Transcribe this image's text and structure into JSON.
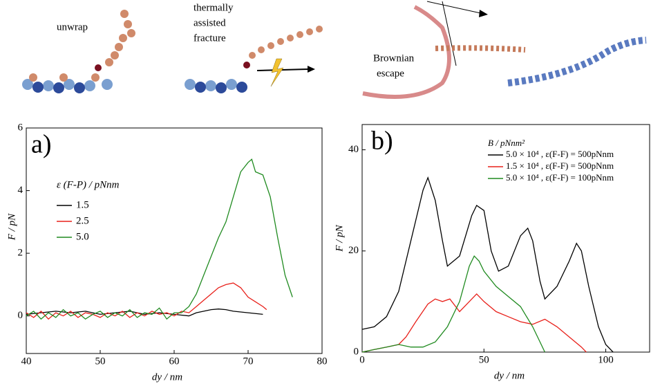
{
  "top_labels": {
    "unwrap": "unwrap",
    "fracture": [
      "thermally",
      "assisted",
      "fracture"
    ],
    "escape": [
      "Brownian",
      "escape"
    ]
  },
  "chart_data": [
    {
      "type": "line",
      "panel_label": "a)",
      "xlabel": "dy / nm",
      "ylabel": "F / pN",
      "xlim": [
        40,
        80
      ],
      "ylim": [
        -1.2,
        6
      ],
      "xticks": [
        40,
        50,
        60,
        70,
        80
      ],
      "yticks": [
        0,
        2,
        4,
        6
      ],
      "legend_title": "ε (F-P) / pNnm",
      "legend_position": "upper left",
      "series": [
        {
          "name": "1.5",
          "color": "#000000",
          "x": [
            40,
            42,
            44,
            46,
            48,
            50,
            52,
            54,
            56,
            58,
            60,
            62,
            63,
            64,
            65,
            66,
            67,
            68,
            70,
            72
          ],
          "values": [
            0.05,
            0.1,
            0.15,
            0.1,
            0.15,
            0.05,
            0.1,
            0.15,
            0.05,
            0.1,
            0.05,
            0.0,
            0.1,
            0.15,
            0.2,
            0.22,
            0.2,
            0.15,
            0.1,
            0.05
          ]
        },
        {
          "name": "2.5",
          "color": "#e8201a",
          "x": [
            40,
            41,
            42,
            43,
            44,
            45,
            46,
            47,
            48,
            49,
            50,
            51,
            52,
            53,
            54,
            55,
            56,
            57,
            58,
            59,
            60,
            61,
            62,
            63,
            64,
            65,
            66,
            67,
            68,
            69,
            70,
            71,
            72,
            72.5
          ],
          "values": [
            0.1,
            -0.05,
            0.15,
            -0.1,
            0.1,
            0.0,
            0.15,
            -0.05,
            0.1,
            0.05,
            -0.05,
            0.1,
            0.0,
            0.15,
            -0.05,
            0.1,
            0.0,
            0.15,
            0.05,
            0.1,
            0.0,
            0.15,
            0.1,
            0.3,
            0.5,
            0.7,
            0.9,
            1.0,
            1.05,
            0.9,
            0.6,
            0.45,
            0.3,
            0.2
          ]
        },
        {
          "name": "5.0",
          "color": "#1f8a1f",
          "x": [
            40,
            41,
            42,
            43,
            44,
            45,
            46,
            47,
            48,
            49,
            50,
            51,
            52,
            53,
            54,
            55,
            56,
            57,
            58,
            59,
            60,
            61,
            62,
            63,
            64,
            65,
            66,
            67,
            68,
            69,
            70,
            70.5,
            71,
            72,
            73,
            74,
            75,
            76
          ],
          "values": [
            0.0,
            0.15,
            -0.1,
            0.1,
            -0.05,
            0.2,
            0.0,
            0.1,
            -0.1,
            0.05,
            0.15,
            -0.05,
            0.1,
            0.0,
            0.2,
            -0.05,
            0.1,
            0.05,
            0.25,
            -0.1,
            0.1,
            0.1,
            0.3,
            0.7,
            1.3,
            1.9,
            2.5,
            3.0,
            3.8,
            4.6,
            4.9,
            5.0,
            4.6,
            4.5,
            3.8,
            2.5,
            1.3,
            0.6
          ]
        }
      ]
    },
    {
      "type": "line",
      "panel_label": "b)",
      "xlabel": "dy / nm",
      "ylabel": "F / pN",
      "xlim": [
        0,
        118
      ],
      "ylim": [
        0,
        45
      ],
      "xticks": [
        0,
        50,
        100
      ],
      "yticks": [
        0,
        20,
        40
      ],
      "legend_title": "B / pNnm²",
      "legend_position": "upper right",
      "series": [
        {
          "name": "5.0 × 10⁴ , ε(F-F) = 500pNnm",
          "color": "#000000",
          "x": [
            0,
            5,
            10,
            15,
            20,
            25,
            27,
            30,
            33,
            35,
            40,
            45,
            47,
            50,
            53,
            56,
            60,
            65,
            68,
            70,
            73,
            75,
            80,
            85,
            88,
            90,
            93,
            97,
            100,
            103
          ],
          "values": [
            4.5,
            5,
            7,
            12,
            22,
            32,
            34.5,
            30,
            22,
            17,
            19,
            27,
            29,
            28,
            20,
            16,
            17,
            23,
            24.5,
            22,
            14,
            10.5,
            13,
            18,
            21.5,
            20,
            13,
            5,
            1.5,
            0
          ]
        },
        {
          "name": "1.5 × 10⁴ , ε(F-F) = 500pNnm",
          "color": "#e8201a",
          "x": [
            0,
            5,
            10,
            15,
            18,
            22,
            27,
            30,
            33,
            36,
            40,
            44,
            47,
            50,
            55,
            60,
            65,
            70,
            75,
            80,
            85,
            90,
            92
          ],
          "values": [
            0,
            0.5,
            1,
            1.5,
            3,
            6,
            9.5,
            10.5,
            10,
            10.5,
            8,
            10,
            11.5,
            10,
            8,
            7,
            6,
            5.5,
            6.5,
            5,
            3,
            1,
            0
          ]
        },
        {
          "name": "5.0 × 10⁴ , ε(F-F) = 100pNnm",
          "color": "#1f8a1f",
          "x": [
            0,
            5,
            10,
            15,
            20,
            25,
            30,
            35,
            40,
            44,
            46,
            48,
            50,
            55,
            60,
            65,
            70,
            73,
            75
          ],
          "values": [
            0,
            0.5,
            1,
            1.5,
            1,
            1,
            2,
            5,
            10,
            17,
            19,
            18,
            16,
            13,
            11,
            9,
            5,
            2,
            0
          ]
        }
      ]
    }
  ]
}
